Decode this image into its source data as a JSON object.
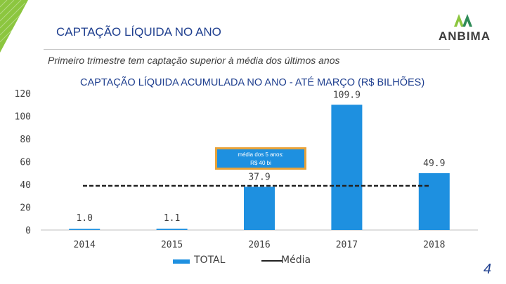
{
  "header": {
    "title": "CAPTAÇÃO LÍQUIDA NO ANO",
    "logo_text": "ANBIMA",
    "subtitle": "Primeiro trimestre tem captação superior à média dos últimos anos"
  },
  "annotation": {
    "line1": "média dos 5 anos:",
    "line2": "R$ 40 bi"
  },
  "legend": {
    "total": "TOTAL",
    "media": "Média"
  },
  "page_number": "4",
  "colors": {
    "bar": "#1e90e0",
    "accent_green": "#8cc63f",
    "brand_blue": "#1f3f8f",
    "annotation_border": "#e8a33a"
  },
  "chart_data": {
    "type": "bar",
    "title": "CAPTAÇÃO LÍQUIDA ACUMULADA NO ANO - ATÉ MARÇO (R$ BILHÕES)",
    "categories": [
      "2014",
      "2015",
      "2016",
      "2017",
      "2018"
    ],
    "series": [
      {
        "name": "TOTAL",
        "values": [
          1.0,
          1.1,
          37.9,
          109.9,
          49.9
        ],
        "labels": [
          "1.0",
          "1.1",
          "37.9",
          "109.9",
          "49.9"
        ]
      },
      {
        "name": "Média",
        "value": 40
      }
    ],
    "yticks": [
      "0",
      "20",
      "40",
      "60",
      "80",
      "100",
      "120"
    ],
    "ylim": [
      0,
      120
    ],
    "xlabel": "",
    "ylabel": ""
  }
}
